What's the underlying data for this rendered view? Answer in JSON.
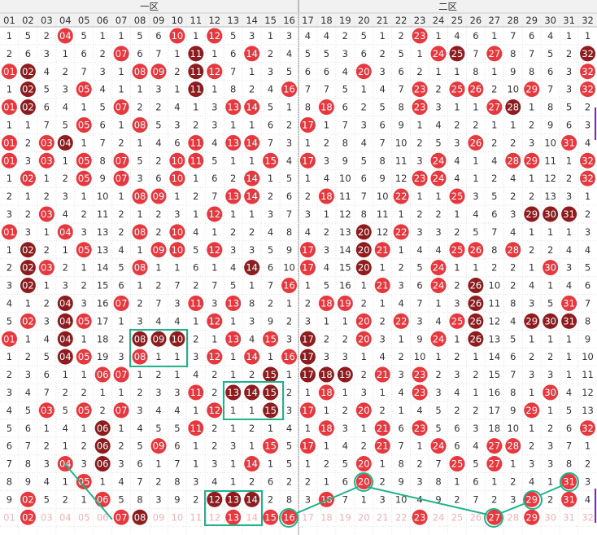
{
  "header": {
    "zones": [
      "一区",
      "二区"
    ],
    "columns": [
      "01",
      "02",
      "03",
      "04",
      "05",
      "06",
      "07",
      "08",
      "09",
      "10",
      "11",
      "12",
      "13",
      "14",
      "15",
      "16",
      "17",
      "18",
      "19",
      "20",
      "21",
      "22",
      "23",
      "24",
      "25",
      "26",
      "27",
      "28",
      "29",
      "30",
      "31",
      "32"
    ]
  },
  "ball_colors": {
    "r": "#e5383f",
    "d": "#8e1c1e"
  },
  "rows": [
    {
      "cells": [
        "1",
        "5",
        "2",
        "04",
        "5",
        "1",
        "1",
        "5",
        "6",
        "10",
        "1",
        "12",
        "5",
        "3",
        "1",
        "3",
        "4",
        "4",
        "2",
        "5",
        "1",
        "2",
        "23",
        "1",
        "4",
        "6",
        "1",
        "7",
        "6",
        "4",
        "1",
        "1"
      ],
      "marks": "...r.....r.r..........r........."
    },
    {
      "cells": [
        "2",
        "6",
        "3",
        "1",
        "6",
        "2",
        "07",
        "6",
        "7",
        "1",
        "11",
        "1",
        "6",
        "14",
        "2",
        "4",
        "5",
        "5",
        "3",
        "6",
        "2",
        "5",
        "1",
        "24",
        "25",
        "7",
        "27",
        "8",
        "7",
        "5",
        "2",
        "32"
      ],
      "marks": "......r...d..r.........rd.r....d"
    },
    {
      "cells": [
        "01",
        "02",
        "4",
        "2",
        "7",
        "3",
        "1",
        "08",
        "09",
        "2",
        "11",
        "12",
        "7",
        "1",
        "3",
        "5",
        "6",
        "6",
        "4",
        "20",
        "3",
        "6",
        "2",
        "1",
        "1",
        "8",
        "1",
        "9",
        "8",
        "6",
        "3",
        "32"
      ],
      "marks": "rd.....rr.dr.......r...........r"
    },
    {
      "cells": [
        "1",
        "02",
        "5",
        "3",
        "05",
        "4",
        "1",
        "1",
        "3",
        "1",
        "11",
        "1",
        "8",
        "2",
        "4",
        "16",
        "7",
        "7",
        "5",
        "1",
        "4",
        "7",
        "23",
        "2",
        "25",
        "26",
        "2",
        "10",
        "29",
        "7",
        "3",
        "32"
      ],
      "marks": ".d..r.....d....r......r.rr..r..r"
    },
    {
      "cells": [
        "01",
        "02",
        "6",
        "4",
        "1",
        "5",
        "07",
        "2",
        "2",
        "4",
        "1",
        "3",
        "13",
        "14",
        "5",
        "1",
        "8",
        "18",
        "6",
        "2",
        "5",
        "8",
        "23",
        "3",
        "1",
        "1",
        "27",
        "28",
        "1",
        "8",
        "5",
        "2"
      ],
      "marks": "rd....r.....rr...r....r...rd...."
    },
    {
      "cells": [
        "1",
        "1",
        "7",
        "5",
        "05",
        "6",
        "1",
        "08",
        "5",
        "3",
        "2",
        "3",
        "1",
        "1",
        "6",
        "2",
        "17",
        "1",
        "7",
        "3",
        "6",
        "9",
        "1",
        "4",
        "2",
        "2",
        "1",
        "1",
        "2",
        "9",
        "6",
        "3"
      ],
      "marks": "....r..r........r..............."
    },
    {
      "cells": [
        "01",
        "2",
        "03",
        "04",
        "1",
        "7",
        "2",
        "1",
        "4",
        "6",
        "11",
        "4",
        "13",
        "14",
        "7",
        "3",
        "1",
        "2",
        "8",
        "4",
        "7",
        "10",
        "2",
        "5",
        "3",
        "26",
        "2",
        "2",
        "3",
        "10",
        "31",
        "4"
      ],
      "marks": "r.rd......r.rr...........r....r."
    },
    {
      "cells": [
        "01",
        "3",
        "03",
        "1",
        "05",
        "8",
        "07",
        "5",
        "2",
        "10",
        "11",
        "5",
        "1",
        "1",
        "15",
        "4",
        "17",
        "3",
        "9",
        "5",
        "8",
        "11",
        "3",
        "24",
        "4",
        "1",
        "4",
        "28",
        "29",
        "11",
        "1",
        "32"
      ],
      "marks": "r.r.r.r..rr...r.r......r...rr..r"
    },
    {
      "cells": [
        "1",
        "02",
        "1",
        "2",
        "05",
        "9",
        "07",
        "3",
        "6",
        "10",
        "1",
        "6",
        "2",
        "14",
        "1",
        "5",
        "1",
        "4",
        "10",
        "6",
        "9",
        "12",
        "23",
        "24",
        "4",
        "1",
        "2",
        "4",
        "1",
        "12",
        "2",
        "32"
      ],
      "marks": ".r..r.r..r...r........rr.......r"
    },
    {
      "cells": [
        "2",
        "1",
        "2",
        "3",
        "1",
        "10",
        "1",
        "08",
        "09",
        "1",
        "2",
        "7",
        "13",
        "14",
        "2",
        "6",
        "2",
        "18",
        "11",
        "7",
        "10",
        "22",
        "1",
        "1",
        "25",
        "3",
        "5",
        "2",
        "2",
        "13",
        "3",
        "1"
      ],
      "marks": ".......rr...rr...r...r..r......."
    },
    {
      "cells": [
        "3",
        "2",
        "03",
        "4",
        "2",
        "11",
        "2",
        "1",
        "2",
        "3",
        "1",
        "12",
        "1",
        "1",
        "3",
        "7",
        "3",
        "1",
        "12",
        "8",
        "11",
        "1",
        "2",
        "2",
        "1",
        "4",
        "6",
        "3",
        "29",
        "30",
        "31",
        "2"
      ],
      "marks": "..r........r................ddd."
    },
    {
      "cells": [
        "01",
        "3",
        "1",
        "04",
        "3",
        "13",
        "2",
        "08",
        "2",
        "10",
        "4",
        "1",
        "2",
        "2",
        "4",
        "8",
        "4",
        "2",
        "13",
        "20",
        "12",
        "22",
        "3",
        "3",
        "2",
        "5",
        "7",
        "4",
        "1",
        "1",
        "1",
        "3"
      ],
      "marks": "r..r...r.r.........d.r.........."
    },
    {
      "cells": [
        "1",
        "02",
        "2",
        "1",
        "05",
        "13",
        "4",
        "1",
        "09",
        "10",
        "5",
        "12",
        "3",
        "3",
        "5",
        "9",
        "17",
        "3",
        "14",
        "20",
        "21",
        "1",
        "4",
        "4",
        "25",
        "26",
        "8",
        "28",
        "2",
        "2",
        "4",
        "4"
      ],
      "marks": ".d..r...rr.r....r..dr...rr.r...."
    },
    {
      "cells": [
        "2",
        "02",
        "03",
        "2",
        "1",
        "14",
        "5",
        "08",
        "1",
        "1",
        "6",
        "1",
        "4",
        "14",
        "6",
        "10",
        "17",
        "4",
        "15",
        "20",
        "1",
        "2",
        "5",
        "24",
        "1",
        "1",
        "2",
        "2",
        "1",
        "30",
        "3",
        "5"
      ],
      "marks": ".dr....r.....d..r..d...r.....r.."
    },
    {
      "cells": [
        "3",
        "02",
        "1",
        "3",
        "2",
        "15",
        "6",
        "1",
        "2",
        "7",
        "2",
        "7",
        "5",
        "1",
        "7",
        "16",
        "1",
        "5",
        "16",
        "1",
        "21",
        "3",
        "6",
        "24",
        "2",
        "26",
        "10",
        "2",
        "4",
        "1",
        "4",
        "6"
      ],
      "marks": ".d.............r....r..r.d......"
    },
    {
      "cells": [
        "4",
        "1",
        "2",
        "04",
        "3",
        "16",
        "07",
        "2",
        "7",
        "3",
        "11",
        "3",
        "13",
        "8",
        "2",
        "1",
        "2",
        "18",
        "19",
        "2",
        "1",
        "4",
        "7",
        "1",
        "3",
        "26",
        "11",
        "8",
        "3",
        "5",
        "31",
        "7"
      ],
      "marks": "...d..r...r.r....rr......d....r."
    },
    {
      "cells": [
        "5",
        "02",
        "3",
        "04",
        "05",
        "17",
        "1",
        "3",
        "4",
        "4",
        "1",
        "12",
        "1",
        "3",
        "9",
        "2",
        "3",
        "1",
        "1",
        "20",
        "2",
        "22",
        "3",
        "4",
        "25",
        "26",
        "12",
        "4",
        "29",
        "30",
        "31",
        "8"
      ],
      "marks": ".r.dr......r.......r.r..rd..ddd."
    },
    {
      "cells": [
        "01",
        "1",
        "4",
        "04",
        "1",
        "18",
        "2",
        "08",
        "09",
        "10",
        "2",
        "1",
        "13",
        "4",
        "15",
        "3",
        "17",
        "2",
        "2",
        "20",
        "3",
        "1",
        "9",
        "24",
        "1",
        "26",
        "13",
        "5",
        "1",
        "1",
        "1",
        "9"
      ],
      "marks": "r..d...ddd..r.r.d..r...r.d......"
    },
    {
      "cells": [
        "1",
        "2",
        "5",
        "04",
        "05",
        "19",
        "3",
        "08",
        "1",
        "1",
        "3",
        "12",
        "1",
        "14",
        "1",
        "16",
        "17",
        "3",
        "3",
        "1",
        "4",
        "2",
        "10",
        "1",
        "2",
        "1",
        "14",
        "6",
        "2",
        "2",
        "1",
        "10"
      ],
      "marks": "...dr..r...r.r.rd..............."
    },
    {
      "cells": [
        "2",
        "3",
        "6",
        "1",
        "1",
        "06",
        "07",
        "1",
        "2",
        "1",
        "4",
        "2",
        "1",
        "2",
        "15",
        "1",
        "17",
        "18",
        "19",
        "2",
        "21",
        "3",
        "23",
        "2",
        "3",
        "2",
        "15",
        "7",
        "3",
        "3",
        "1",
        "11"
      ],
      "marks": ".....rr.......d.ddd.r.r........."
    },
    {
      "cells": [
        "3",
        "4",
        "7",
        "2",
        "2",
        "1",
        "1",
        "2",
        "3",
        "3",
        "11",
        "2",
        "13",
        "14",
        "15",
        "2",
        "1",
        "18",
        "1",
        "3",
        "1",
        "4",
        "23",
        "3",
        "4",
        "1",
        "16",
        "8",
        "1",
        "30",
        "4",
        "12"
      ],
      "marks": "..........r.ddd..r....r......r.."
    },
    {
      "cells": [
        "4",
        "5",
        "03",
        "5",
        "05",
        "2",
        "07",
        "3",
        "4",
        "4",
        "1",
        "12",
        "1",
        "1",
        "15",
        "3",
        "17",
        "1",
        "2",
        "20",
        "2",
        "1",
        "4",
        "5",
        "2",
        "2",
        "17",
        "9",
        "29",
        "1",
        "5",
        "13"
      ],
      "marks": "..r.r.r....r..d.r..r........r..."
    },
    {
      "cells": [
        "5",
        "6",
        "1",
        "4",
        "1",
        "06",
        "1",
        "4",
        "5",
        "5",
        "11",
        "2",
        "1",
        "2",
        "1",
        "4",
        "1",
        "18",
        "3",
        "1",
        "21",
        "6",
        "23",
        "5",
        "6",
        "3",
        "18",
        "10",
        "1",
        "2",
        "6",
        "32"
      ],
      "marks": ".....d....r......r..r.r........r"
    },
    {
      "cells": [
        "6",
        "7",
        "2",
        "1",
        "2",
        "06",
        "2",
        "5",
        "09",
        "6",
        "1",
        "2",
        "3",
        "1",
        "15",
        "5",
        "17",
        "1",
        "4",
        "2",
        "21",
        "7",
        "1",
        "24",
        "6",
        "4",
        "27",
        "28",
        "2",
        "3",
        "7",
        "1"
      ],
      "marks": ".....d..r.....r.r...r..r..rr...."
    },
    {
      "cells": [
        "7",
        "8",
        "3",
        "04",
        "3",
        "06",
        "3",
        "6",
        "1",
        "7",
        "1",
        "3",
        "1",
        "14",
        "1",
        "5",
        "1",
        "2",
        "5",
        "20",
        "1",
        "8",
        "2",
        "7",
        "25",
        "5",
        "27",
        "1",
        "3",
        "3",
        "8",
        "2"
      ],
      "marks": "...r.d.......r.....r....r.r....."
    },
    {
      "cells": [
        "8",
        "9",
        "4",
        "1",
        "05",
        "1",
        "4",
        "7",
        "2",
        "8",
        "3",
        "4",
        "1",
        "2",
        "6",
        "2",
        "2",
        "1",
        "6",
        "20",
        "2",
        "9",
        "3",
        "8",
        "1",
        "6",
        "1",
        "2",
        "4",
        "1",
        "31",
        "3"
      ],
      "marks": "....r..............r..........r."
    },
    {
      "cells": [
        "9",
        "02",
        "5",
        "2",
        "1",
        "06",
        "5",
        "8",
        "3",
        "9",
        "2",
        "12",
        "13",
        "14",
        "2",
        "8",
        "3",
        "18",
        "7",
        "1",
        "3",
        "10",
        "4",
        "9",
        "2",
        "7",
        "2",
        "3",
        "29",
        "2",
        "31",
        "4"
      ],
      "marks": ".r...r.....ddd...r..........r.r."
    },
    {
      "cells": [
        "01",
        "02",
        "03",
        "04",
        "05",
        "06",
        "07",
        "08",
        "09",
        "10",
        "11",
        "12",
        "13",
        "14",
        "15",
        "16",
        "17",
        "18",
        "19",
        "20",
        "21",
        "22",
        "23",
        "24",
        "25",
        "26",
        "27",
        "28",
        "29",
        "30",
        "31",
        "32"
      ],
      "marks": "frffffrdffffrfrrffffffrfffrfrfff"
    }
  ]
}
